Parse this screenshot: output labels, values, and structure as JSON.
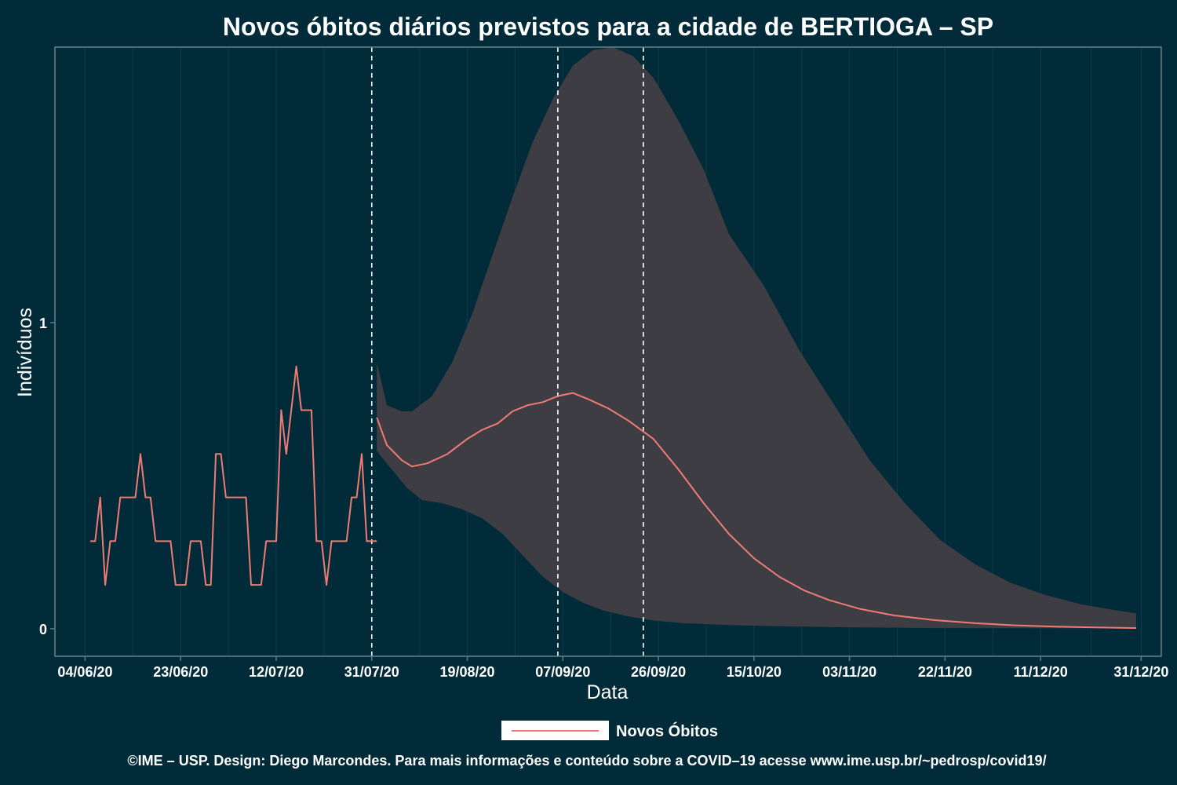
{
  "colors": {
    "background": "#012b39",
    "panel_border": "#5f7c85",
    "grid": "#0d3a48",
    "band": "#3f3d44",
    "line": "#f07b74",
    "vline": "#ffffff"
  },
  "chart_data": {
    "type": "line",
    "title": "Novos óbitos diários previstos para a cidade de BERTIOGA – SP",
    "xlabel": "Data",
    "ylabel": "Indivíduos",
    "x_date_range": [
      "2020-05-29",
      "2021-01-04"
    ],
    "ylim": [
      -0.09,
      1.9
    ],
    "x_ticks": [
      {
        "date": "2020-06-04",
        "label": "04/06/20"
      },
      {
        "date": "2020-06-23",
        "label": "23/06/20"
      },
      {
        "date": "2020-07-12",
        "label": "12/07/20"
      },
      {
        "date": "2020-07-31",
        "label": "31/07/20"
      },
      {
        "date": "2020-08-19",
        "label": "19/08/20"
      },
      {
        "date": "2020-09-07",
        "label": "07/09/20"
      },
      {
        "date": "2020-09-26",
        "label": "26/09/20"
      },
      {
        "date": "2020-10-15",
        "label": "15/10/20"
      },
      {
        "date": "2020-11-03",
        "label": "03/11/20"
      },
      {
        "date": "2020-11-22",
        "label": "22/11/20"
      },
      {
        "date": "2020-12-11",
        "label": "11/12/20"
      },
      {
        "date": "2020-12-31",
        "label": "31/12/20"
      }
    ],
    "y_ticks": [
      {
        "value": 0,
        "label": "0"
      },
      {
        "value": 1,
        "label": "1"
      }
    ],
    "vlines": [
      "2020-07-31",
      "2020-09-06",
      "2020-09-23"
    ],
    "legend": {
      "position": "bottom",
      "label": "Novos Óbitos"
    },
    "series": [
      {
        "name": "Novos Óbitos",
        "kind": "observed",
        "points": [
          [
            "2020-06-05",
            0.286
          ],
          [
            "2020-06-06",
            0.286
          ],
          [
            "2020-06-07",
            0.429
          ],
          [
            "2020-06-08",
            0.143
          ],
          [
            "2020-06-09",
            0.286
          ],
          [
            "2020-06-10",
            0.286
          ],
          [
            "2020-06-11",
            0.429
          ],
          [
            "2020-06-12",
            0.429
          ],
          [
            "2020-06-13",
            0.429
          ],
          [
            "2020-06-14",
            0.429
          ],
          [
            "2020-06-15",
            0.571
          ],
          [
            "2020-06-16",
            0.429
          ],
          [
            "2020-06-17",
            0.429
          ],
          [
            "2020-06-18",
            0.286
          ],
          [
            "2020-06-19",
            0.286
          ],
          [
            "2020-06-20",
            0.286
          ],
          [
            "2020-06-21",
            0.286
          ],
          [
            "2020-06-22",
            0.143
          ],
          [
            "2020-06-23",
            0.143
          ],
          [
            "2020-06-24",
            0.143
          ],
          [
            "2020-06-25",
            0.286
          ],
          [
            "2020-06-26",
            0.286
          ],
          [
            "2020-06-27",
            0.286
          ],
          [
            "2020-06-28",
            0.143
          ],
          [
            "2020-06-29",
            0.143
          ],
          [
            "2020-06-30",
            0.571
          ],
          [
            "2020-07-01",
            0.571
          ],
          [
            "2020-07-02",
            0.429
          ],
          [
            "2020-07-03",
            0.429
          ],
          [
            "2020-07-04",
            0.429
          ],
          [
            "2020-07-05",
            0.429
          ],
          [
            "2020-07-06",
            0.429
          ],
          [
            "2020-07-07",
            0.143
          ],
          [
            "2020-07-08",
            0.143
          ],
          [
            "2020-07-09",
            0.143
          ],
          [
            "2020-07-10",
            0.286
          ],
          [
            "2020-07-11",
            0.286
          ],
          [
            "2020-07-12",
            0.286
          ],
          [
            "2020-07-13",
            0.714
          ],
          [
            "2020-07-14",
            0.571
          ],
          [
            "2020-07-15",
            0.714
          ],
          [
            "2020-07-16",
            0.857
          ],
          [
            "2020-07-17",
            0.714
          ],
          [
            "2020-07-18",
            0.714
          ],
          [
            "2020-07-19",
            0.714
          ],
          [
            "2020-07-20",
            0.286
          ],
          [
            "2020-07-21",
            0.286
          ],
          [
            "2020-07-22",
            0.143
          ],
          [
            "2020-07-23",
            0.286
          ],
          [
            "2020-07-24",
            0.286
          ],
          [
            "2020-07-25",
            0.286
          ],
          [
            "2020-07-26",
            0.286
          ],
          [
            "2020-07-27",
            0.429
          ],
          [
            "2020-07-28",
            0.429
          ],
          [
            "2020-07-29",
            0.571
          ],
          [
            "2020-07-30",
            0.286
          ],
          [
            "2020-07-31",
            0.286
          ],
          [
            "2020-08-01",
            0.286
          ]
        ]
      },
      {
        "name": "Novos Óbitos",
        "kind": "forecast",
        "points": [
          [
            "2020-08-01",
            0.69
          ],
          [
            "2020-08-03",
            0.6
          ],
          [
            "2020-08-06",
            0.55
          ],
          [
            "2020-08-08",
            0.53
          ],
          [
            "2020-08-11",
            0.54
          ],
          [
            "2020-08-15",
            0.57
          ],
          [
            "2020-08-19",
            0.62
          ],
          [
            "2020-08-22",
            0.65
          ],
          [
            "2020-08-25",
            0.67
          ],
          [
            "2020-08-28",
            0.71
          ],
          [
            "2020-08-31",
            0.73
          ],
          [
            "2020-09-03",
            0.74
          ],
          [
            "2020-09-06",
            0.76
          ],
          [
            "2020-09-09",
            0.77
          ],
          [
            "2020-09-12",
            0.75
          ],
          [
            "2020-09-16",
            0.72
          ],
          [
            "2020-09-20",
            0.68
          ],
          [
            "2020-09-25",
            0.62
          ],
          [
            "2020-09-30",
            0.52
          ],
          [
            "2020-10-05",
            0.41
          ],
          [
            "2020-10-10",
            0.31
          ],
          [
            "2020-10-15",
            0.23
          ],
          [
            "2020-10-20",
            0.17
          ],
          [
            "2020-10-25",
            0.125
          ],
          [
            "2020-10-30",
            0.093
          ],
          [
            "2020-11-05",
            0.065
          ],
          [
            "2020-11-12",
            0.043
          ],
          [
            "2020-11-20",
            0.028
          ],
          [
            "2020-11-28",
            0.018
          ],
          [
            "2020-12-06",
            0.011
          ],
          [
            "2020-12-14",
            0.007
          ],
          [
            "2020-12-22",
            0.004
          ],
          [
            "2020-12-30",
            0.002
          ]
        ]
      }
    ],
    "interval": {
      "name": "Novos Óbitos",
      "upper": [
        [
          "2020-08-01",
          0.87
        ],
        [
          "2020-08-03",
          0.73
        ],
        [
          "2020-08-06",
          0.71
        ],
        [
          "2020-08-08",
          0.71
        ],
        [
          "2020-08-12",
          0.76
        ],
        [
          "2020-08-16",
          0.87
        ],
        [
          "2020-08-20",
          1.03
        ],
        [
          "2020-08-24",
          1.22
        ],
        [
          "2020-08-28",
          1.41
        ],
        [
          "2020-09-01",
          1.59
        ],
        [
          "2020-09-05",
          1.73
        ],
        [
          "2020-09-09",
          1.84
        ],
        [
          "2020-09-13",
          1.89
        ],
        [
          "2020-09-17",
          1.9
        ],
        [
          "2020-09-21",
          1.87
        ],
        [
          "2020-09-25",
          1.8
        ],
        [
          "2020-09-30",
          1.66
        ],
        [
          "2020-10-05",
          1.5
        ],
        [
          "2020-10-10",
          1.29
        ],
        [
          "2020-10-17",
          1.12
        ],
        [
          "2020-10-24",
          0.91
        ],
        [
          "2020-10-31",
          0.73
        ],
        [
          "2020-11-07",
          0.55
        ],
        [
          "2020-11-14",
          0.41
        ],
        [
          "2020-11-21",
          0.29
        ],
        [
          "2020-11-28",
          0.21
        ],
        [
          "2020-12-05",
          0.15
        ],
        [
          "2020-12-12",
          0.11
        ],
        [
          "2020-12-19",
          0.08
        ],
        [
          "2020-12-26",
          0.06
        ],
        [
          "2020-12-30",
          0.05
        ]
      ],
      "lower": [
        [
          "2020-08-01",
          0.58
        ],
        [
          "2020-08-04",
          0.52
        ],
        [
          "2020-08-07",
          0.46
        ],
        [
          "2020-08-10",
          0.42
        ],
        [
          "2020-08-14",
          0.41
        ],
        [
          "2020-08-18",
          0.39
        ],
        [
          "2020-08-22",
          0.36
        ],
        [
          "2020-08-26",
          0.31
        ],
        [
          "2020-08-30",
          0.24
        ],
        [
          "2020-09-03",
          0.17
        ],
        [
          "2020-09-07",
          0.12
        ],
        [
          "2020-09-11",
          0.085
        ],
        [
          "2020-09-15",
          0.06
        ],
        [
          "2020-09-20",
          0.04
        ],
        [
          "2020-09-25",
          0.027
        ],
        [
          "2020-10-01",
          0.018
        ],
        [
          "2020-10-10",
          0.012
        ],
        [
          "2020-10-20",
          0.008
        ],
        [
          "2020-11-01",
          0.005
        ],
        [
          "2020-11-20",
          0.002
        ],
        [
          "2020-12-30",
          0.001
        ]
      ]
    }
  },
  "caption": "©IME – USP. Design: Diego Marcondes. Para mais informações e conteúdo sobre a COVID–19 acesse www.ime.usp.br/~pedrosp/covid19/"
}
